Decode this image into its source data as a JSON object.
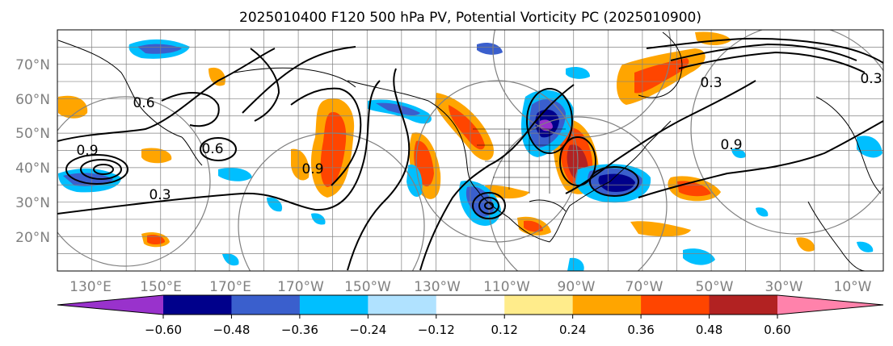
{
  "title": "2025010400 F120 500 hPa PV, Potential Vorticity PC (2025010900)",
  "map": {
    "lat_labels": [
      "70°N",
      "60°N",
      "50°N",
      "40°N",
      "30°N",
      "20°N"
    ],
    "lon_labels": [
      "130°E",
      "150°E",
      "170°E",
      "170°W",
      "150°W",
      "130°W",
      "110°W",
      "90°W",
      "70°W",
      "50°W",
      "30°W",
      "10°W"
    ],
    "contour_labels": [
      "0.6",
      "0.9",
      "0.3",
      "0.6",
      "0.9",
      "0.3",
      "0.9",
      "0.3"
    ]
  },
  "colorbar": {
    "tick_labels": [
      "−0.60",
      "−0.48",
      "−0.36",
      "−0.24",
      "−0.12",
      "0.12",
      "0.24",
      "0.36",
      "0.48",
      "0.60"
    ],
    "colors": [
      "#9932CC",
      "#00008B",
      "#3A5FCD",
      "#00BFFF",
      "#B0E2FF",
      "#FFFFFF",
      "#FFEC8B",
      "#FFA500",
      "#FF4500",
      "#B22222",
      "#FF82AB"
    ]
  },
  "colors": {
    "coastline": "#000000",
    "grid": "#808080",
    "tick_label": "#808080"
  }
}
